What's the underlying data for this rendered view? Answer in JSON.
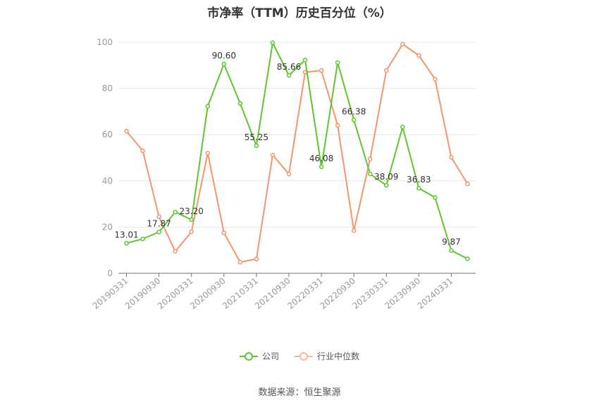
{
  "chart_data": {
    "type": "line",
    "title": "市净率（TTM）历史百分位（%）",
    "x": [
      "20190331",
      "20190630",
      "20190930",
      "20191231",
      "20200331",
      "20200630",
      "20200930",
      "20201231",
      "20210331",
      "20210630",
      "20210930",
      "20211231",
      "20220331",
      "20220630",
      "20220930",
      "20221231",
      "20230331",
      "20230630",
      "20230930",
      "20231231",
      "20240331",
      "20240630"
    ],
    "x_tick_labels": [
      "20190331",
      "20190930",
      "20200331",
      "20200930",
      "20210331",
      "20210930",
      "20220331",
      "20220930",
      "20230331",
      "20230930",
      "20240331"
    ],
    "ylim": [
      0,
      100
    ],
    "y_ticks": [
      0,
      20,
      40,
      60,
      80,
      100
    ],
    "grid": true,
    "legend_position": "bottom-center",
    "series": [
      {
        "name": "公司",
        "color": "#5ec62e",
        "values": [
          13.01,
          14.9,
          17.87,
          26.5,
          23.2,
          72.3,
          90.6,
          73.5,
          55.25,
          99.8,
          85.66,
          92.3,
          46.08,
          91.2,
          66.38,
          43.0,
          38.09,
          63.3,
          36.83,
          32.8,
          9.87,
          6.3
        ],
        "labels": [
          {
            "index": 0,
            "text": "13.01"
          },
          {
            "index": 2,
            "text": "17.87"
          },
          {
            "index": 4,
            "text": "23.20"
          },
          {
            "index": 6,
            "text": "90.60"
          },
          {
            "index": 8,
            "text": "55.25"
          },
          {
            "index": 10,
            "text": "85.66"
          },
          {
            "index": 12,
            "text": "46.08"
          },
          {
            "index": 14,
            "text": "66.38"
          },
          {
            "index": 16,
            "text": "38.09"
          },
          {
            "index": 18,
            "text": "36.83"
          },
          {
            "index": 20,
            "text": "9.87"
          }
        ]
      },
      {
        "name": "行业中位数",
        "color": "#f4956a",
        "values": [
          61.5,
          53.0,
          24.5,
          9.5,
          18.0,
          52.0,
          17.5,
          4.8,
          6.2,
          51.2,
          43.0,
          87.0,
          87.8,
          64.0,
          18.5,
          49.5,
          87.8,
          99.2,
          94.3,
          84.0,
          50.2,
          38.7
        ],
        "labels": []
      }
    ]
  },
  "source_text": "数据来源：恒生聚源"
}
